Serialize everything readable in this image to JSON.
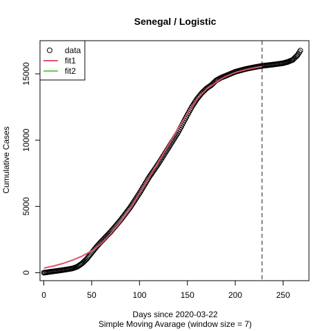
{
  "chart_data": {
    "type": "scatter",
    "title": "Senegal / Logistic",
    "xlabel": "Days since 2020-03-22",
    "subtitle": "Simple Moving Avarage (window size = 7)",
    "ylabel": "Cumulative Cases",
    "xlim": [
      -4,
      277
    ],
    "ylim": [
      -600,
      17500
    ],
    "x_ticks": [
      0,
      50,
      100,
      150,
      200,
      250
    ],
    "y_ticks": [
      0,
      5000,
      10000,
      15000
    ],
    "x_tick_labels": [
      "0",
      "50",
      "100",
      "150",
      "200",
      "250"
    ],
    "y_tick_labels": [
      "0",
      "5000",
      "10000",
      "15000"
    ],
    "cutoff_day": 228,
    "legend": {
      "placement": "top-left",
      "entries": [
        {
          "label": "data",
          "kind": "point",
          "color": "#000000"
        },
        {
          "label": "fit1",
          "kind": "line",
          "color": "#DF536B"
        },
        {
          "label": "fit2",
          "kind": "line",
          "color": "#61D04F"
        }
      ]
    },
    "series": [
      {
        "name": "data",
        "style": "points",
        "color": "#000000",
        "x": [
          0,
          10,
          20,
          30,
          35,
          40,
          45,
          50,
          55,
          60,
          70,
          80,
          90,
          100,
          110,
          120,
          130,
          140,
          150,
          155,
          160,
          165,
          170,
          175,
          180,
          185,
          190,
          200,
          210,
          220,
          228,
          240,
          250,
          255,
          260,
          265,
          268
        ],
        "y": [
          0,
          100,
          200,
          320,
          450,
          700,
          1050,
          1500,
          1950,
          2350,
          3100,
          3950,
          4900,
          6000,
          7200,
          8250,
          9400,
          10550,
          11900,
          12550,
          13100,
          13550,
          13900,
          14150,
          14500,
          14700,
          14850,
          15150,
          15350,
          15500,
          15600,
          15700,
          15800,
          15900,
          16050,
          16400,
          16750
        ]
      },
      {
        "name": "fit1",
        "style": "line",
        "color": "#DF536B",
        "x": [
          0,
          10,
          20,
          30,
          40,
          50,
          55,
          60,
          70,
          80,
          90,
          100,
          110,
          120,
          130,
          140,
          150,
          160,
          170,
          180,
          185,
          190,
          200,
          210,
          220,
          228
        ],
        "y": [
          350,
          500,
          700,
          950,
          1250,
          1650,
          1900,
          2200,
          2950,
          3800,
          4800,
          6000,
          7200,
          8400,
          9600,
          10850,
          12000,
          13100,
          13850,
          14350,
          14600,
          14800,
          15100,
          15300,
          15450,
          15550
        ]
      }
    ]
  }
}
